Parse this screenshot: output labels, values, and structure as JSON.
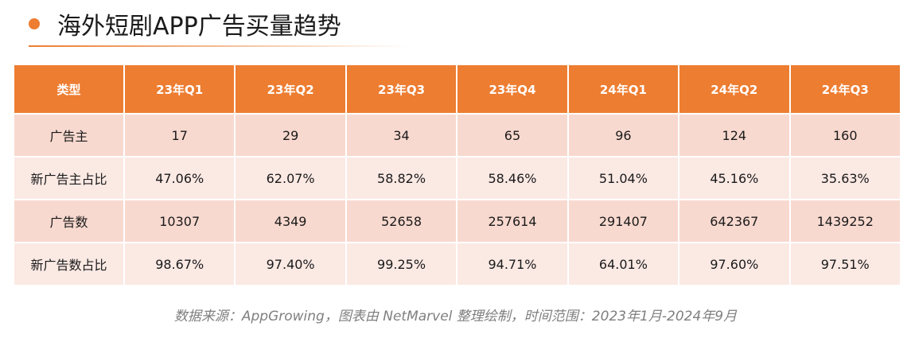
{
  "colors": {
    "accent": "#ed7d31",
    "row_odd": "#f8d9cf",
    "row_even": "#fbe9e4",
    "note_text": "#7f7f7f"
  },
  "header": {
    "bullet_icon": "orange-dot-icon",
    "title": "海外短剧APP广告买量趋势"
  },
  "table": {
    "columns": [
      "类型",
      "23年Q1",
      "23年Q2",
      "23年Q3",
      "23年Q4",
      "24年Q1",
      "24年Q2",
      "24年Q3"
    ],
    "rows": [
      [
        "广告主",
        "17",
        "29",
        "34",
        "65",
        "96",
        "124",
        "160"
      ],
      [
        "新广告主占比",
        "47.06%",
        "62.07%",
        "58.82%",
        "58.46%",
        "51.04%",
        "45.16%",
        "35.63%"
      ],
      [
        "广告数",
        "10307",
        "4349",
        "52658",
        "257614",
        "291407",
        "642367",
        "1439252"
      ],
      [
        "新广告数占比",
        "98.67%",
        "97.40%",
        "99.25%",
        "94.71%",
        "64.01%",
        "97.60%",
        "97.51%"
      ]
    ]
  },
  "footer": {
    "source": "数据来源：AppGrowing，图表由 NetMarvel 整理绘制，时间范围：2023年1月-2024年9月"
  }
}
